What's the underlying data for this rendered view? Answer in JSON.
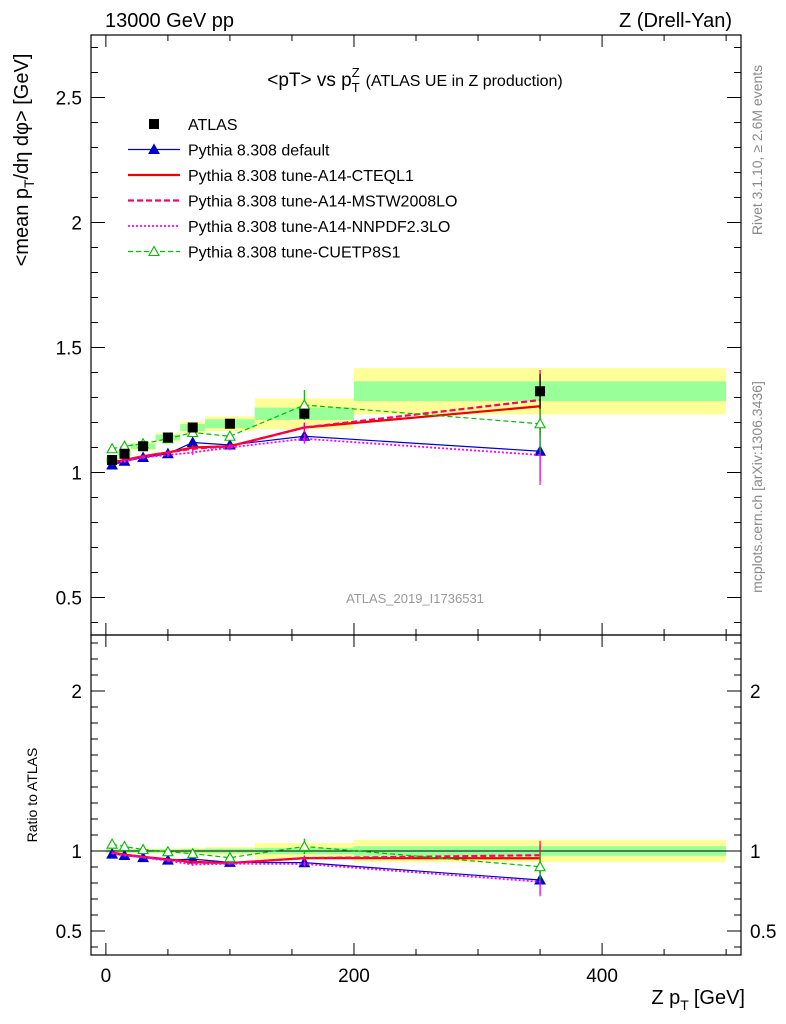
{
  "header": {
    "left": "13000 GeV pp",
    "right": "Z (Drell-Yan)"
  },
  "side_labels": {
    "rivet": "Rivet 3.1.10, ≥ 2.6M events",
    "mcplots": "mcplots.cern.ch [arXiv:1306.3436]"
  },
  "chart_data": {
    "type": "line",
    "title": {
      "main": "<pT> vs p",
      "sub": "T",
      "sup": "Z",
      "suffix": "(ATLAS UE in Z production)"
    },
    "analysis_label": "ATLAS_2019_I1736531",
    "xlabel": {
      "main": "Z p",
      "sub": "T",
      "suffix": "[GeV]"
    },
    "ylabel": {
      "pre": "<mean p",
      "sub": "T",
      "post": "/dη dφ> [GeV]"
    },
    "ratio_ylabel": "Ratio to ATLAS",
    "xlim": [
      -12,
      512
    ],
    "ylim": [
      0.35,
      2.75
    ],
    "ratio_ylim": [
      0.35,
      2.35
    ],
    "xticks": [
      0,
      200,
      400
    ],
    "xtick_labels": [
      "0",
      "200",
      "400"
    ],
    "yticks": [
      0.5,
      1,
      1.5,
      2,
      2.5
    ],
    "ytick_labels": [
      "0.5",
      "1",
      "1.5",
      "2",
      "2.5"
    ],
    "ratio_yticks": [
      0.5,
      1,
      2
    ],
    "ratio_ytick_labels": [
      "0.5",
      "1",
      "2"
    ],
    "x": [
      5,
      15,
      30,
      50,
      70,
      100,
      160,
      350
    ],
    "bin_edges": [
      0,
      10,
      20,
      40,
      60,
      80,
      120,
      200,
      500
    ],
    "data": {
      "name": "ATLAS",
      "values": [
        1.05,
        1.075,
        1.105,
        1.14,
        1.18,
        1.195,
        1.235,
        1.325
      ],
      "errors": [
        0.006,
        0.006,
        0.006,
        0.007,
        0.008,
        0.01,
        0.02,
        0.07
      ]
    },
    "band_fraction_inner": [
      0.01,
      0.01,
      0.01,
      0.01,
      0.012,
      0.015,
      0.02,
      0.03
    ],
    "band_fraction_outer": [
      0.015,
      0.015,
      0.015,
      0.015,
      0.02,
      0.025,
      0.05,
      0.07
    ],
    "series": [
      {
        "name": "Pythia 8.308 default",
        "color": "#0000cc",
        "dash": "",
        "width": 1.2,
        "marker": "triangle-filled",
        "values": [
          1.03,
          1.045,
          1.06,
          1.075,
          1.12,
          1.11,
          1.145,
          1.085
        ],
        "errors": [
          0.006,
          0.006,
          0.006,
          0.008,
          0.01,
          0.012,
          0.02,
          0.12
        ]
      },
      {
        "name": "Pythia 8.308 tune-A14-CTEQL1",
        "color": "#ee0000",
        "dash": "",
        "width": 2.2,
        "marker": "none",
        "values": [
          1.04,
          1.05,
          1.065,
          1.08,
          1.1,
          1.105,
          1.18,
          1.265
        ],
        "errors": [
          0.006,
          0.006,
          0.006,
          0.008,
          0.01,
          0.012,
          0.02,
          0.12
        ]
      },
      {
        "name": "Pythia 8.308 tune-A14-MSTW2008LO",
        "color": "#ff0066",
        "dash": "6,3",
        "width": 2.2,
        "marker": "none",
        "values": [
          1.04,
          1.05,
          1.065,
          1.08,
          1.095,
          1.105,
          1.18,
          1.29
        ],
        "errors": [
          0.006,
          0.006,
          0.006,
          0.008,
          0.01,
          0.012,
          0.02,
          0.12
        ]
      },
      {
        "name": "Pythia 8.308 tune-A14-NNPDF2.3LO",
        "color": "#ff00ff",
        "dash": "2,2",
        "width": 1.8,
        "marker": "none",
        "values": [
          1.035,
          1.045,
          1.06,
          1.07,
          1.08,
          1.1,
          1.135,
          1.07
        ],
        "errors": [
          0.006,
          0.006,
          0.006,
          0.008,
          0.01,
          0.012,
          0.02,
          0.12
        ]
      },
      {
        "name": "Pythia 8.308 tune-CUETP8S1",
        "color": "#00bb00",
        "dash": "5,3",
        "width": 1.2,
        "marker": "triangle-open",
        "values": [
          1.095,
          1.105,
          1.115,
          1.135,
          1.16,
          1.145,
          1.27,
          1.195
        ],
        "errors": [
          0.006,
          0.006,
          0.006,
          0.008,
          0.01,
          0.012,
          0.06,
          0.12
        ]
      }
    ],
    "legend_position": "top-left"
  }
}
